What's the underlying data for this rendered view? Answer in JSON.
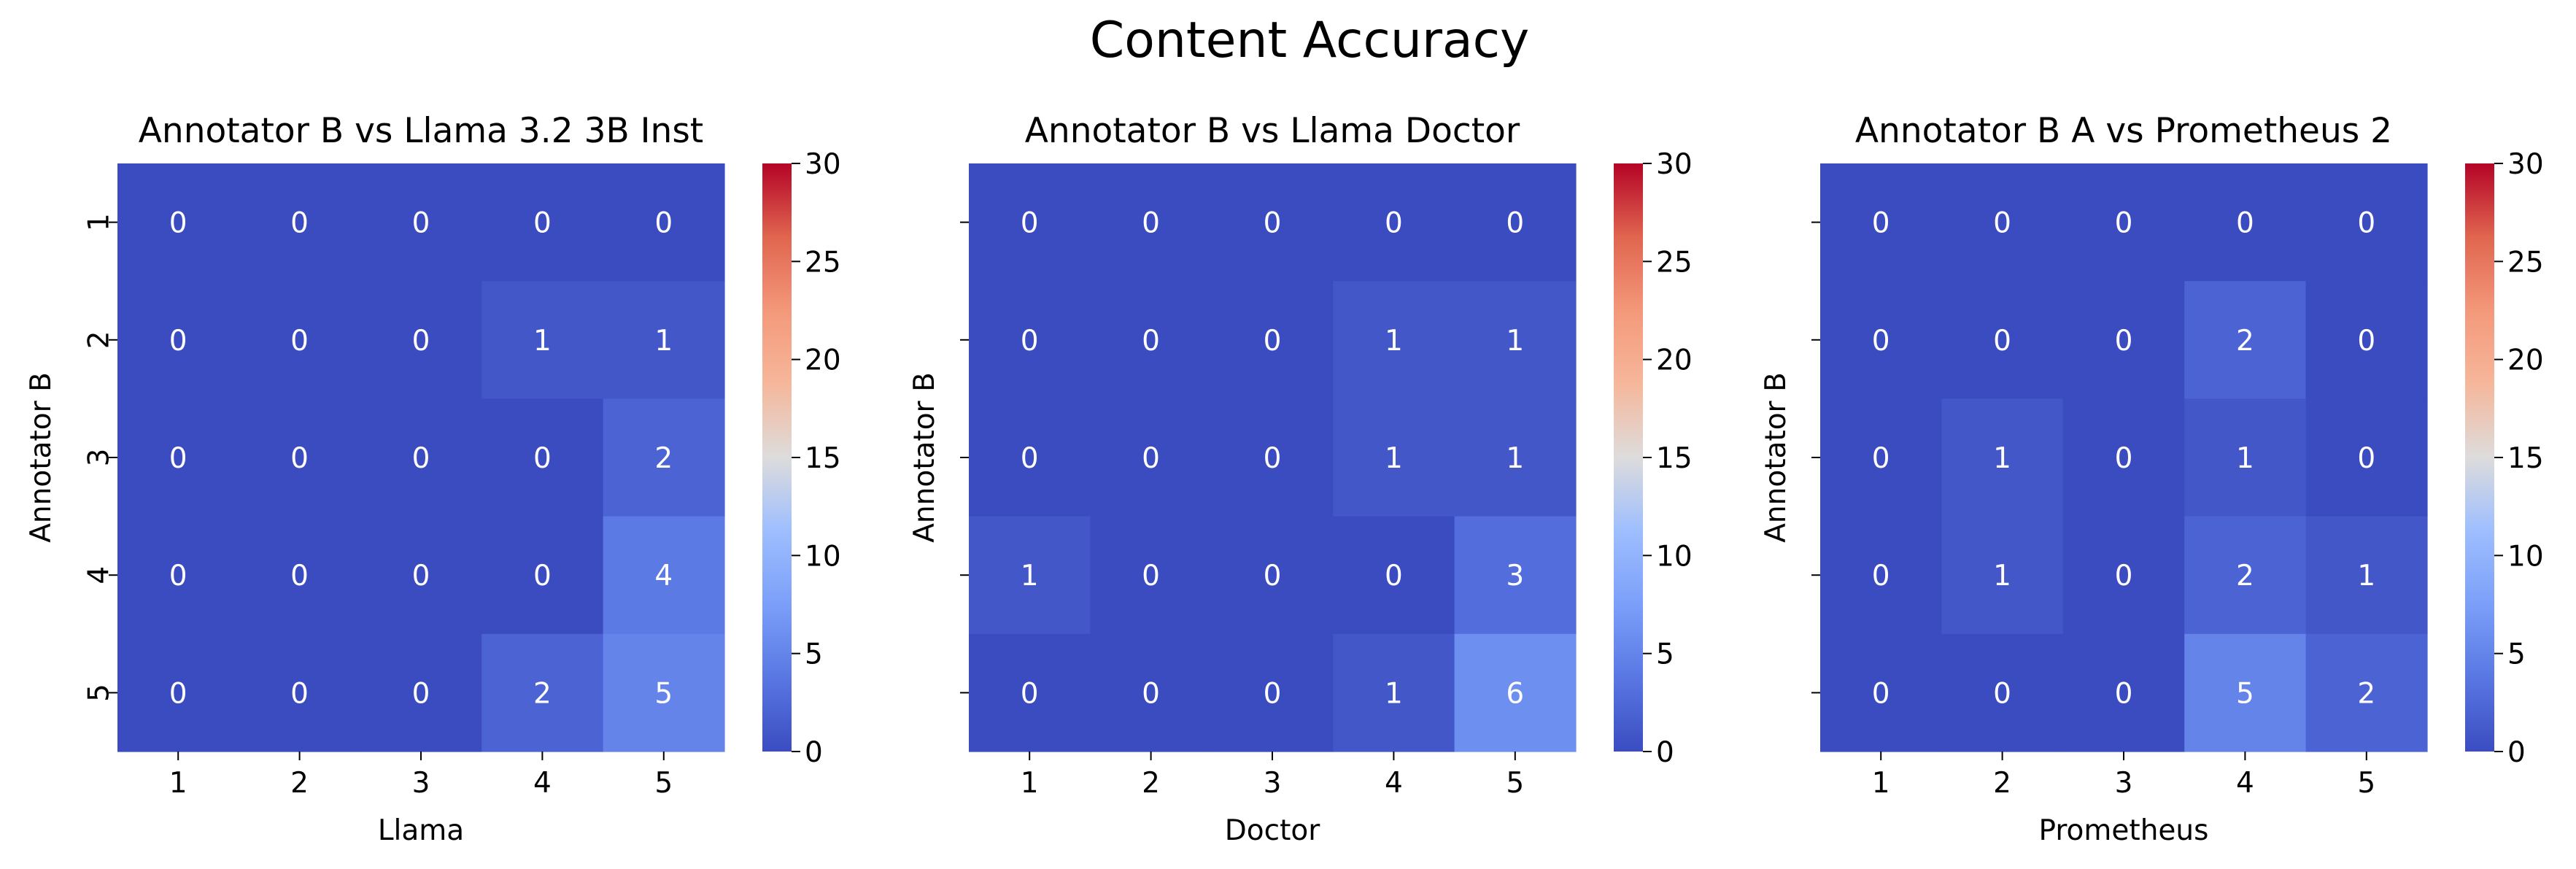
{
  "title": "Content Accuracy",
  "chart_data": [
    {
      "type": "heatmap",
      "title": "Annotator B vs Llama 3.2 3B Inst",
      "xlabel": "Llama",
      "ylabel": "Annotator B",
      "x_categories": [
        "1",
        "2",
        "3",
        "4",
        "5"
      ],
      "y_categories": [
        "1",
        "2",
        "3",
        "4",
        "5"
      ],
      "values": [
        [
          0,
          0,
          0,
          0,
          0
        ],
        [
          0,
          0,
          0,
          1,
          1
        ],
        [
          0,
          0,
          0,
          0,
          2
        ],
        [
          0,
          0,
          0,
          0,
          4
        ],
        [
          0,
          0,
          0,
          2,
          5
        ]
      ],
      "colormap": "coolwarm",
      "vmin": 0,
      "vmax": 30,
      "colorbar_ticks": [
        "0",
        "5",
        "10",
        "15",
        "20",
        "25",
        "30"
      ],
      "show_y_ticklabels": true
    },
    {
      "type": "heatmap",
      "title": "Annotator B vs Llama Doctor",
      "xlabel": "Doctor",
      "ylabel": "Annotator B",
      "x_categories": [
        "1",
        "2",
        "3",
        "4",
        "5"
      ],
      "y_categories": [
        "1",
        "2",
        "3",
        "4",
        "5"
      ],
      "values": [
        [
          0,
          0,
          0,
          0,
          0
        ],
        [
          0,
          0,
          0,
          1,
          1
        ],
        [
          0,
          0,
          0,
          1,
          1
        ],
        [
          1,
          0,
          0,
          0,
          3
        ],
        [
          0,
          0,
          0,
          1,
          6
        ]
      ],
      "colormap": "coolwarm",
      "vmin": 0,
      "vmax": 30,
      "colorbar_ticks": [
        "0",
        "5",
        "10",
        "15",
        "20",
        "25",
        "30"
      ],
      "show_y_ticklabels": false
    },
    {
      "type": "heatmap",
      "title": "Annotator B A vs Prometheus 2",
      "xlabel": "Prometheus",
      "ylabel": "Annotator B",
      "x_categories": [
        "1",
        "2",
        "3",
        "4",
        "5"
      ],
      "y_categories": [
        "1",
        "2",
        "3",
        "4",
        "5"
      ],
      "values": [
        [
          0,
          0,
          0,
          0,
          0
        ],
        [
          0,
          0,
          0,
          2,
          0
        ],
        [
          0,
          1,
          0,
          1,
          0
        ],
        [
          0,
          1,
          0,
          2,
          1
        ],
        [
          0,
          0,
          0,
          5,
          2
        ]
      ],
      "colormap": "coolwarm",
      "vmin": 0,
      "vmax": 30,
      "colorbar_ticks": [
        "0",
        "5",
        "10",
        "15",
        "20",
        "25",
        "30"
      ],
      "show_y_ticklabels": false
    }
  ]
}
